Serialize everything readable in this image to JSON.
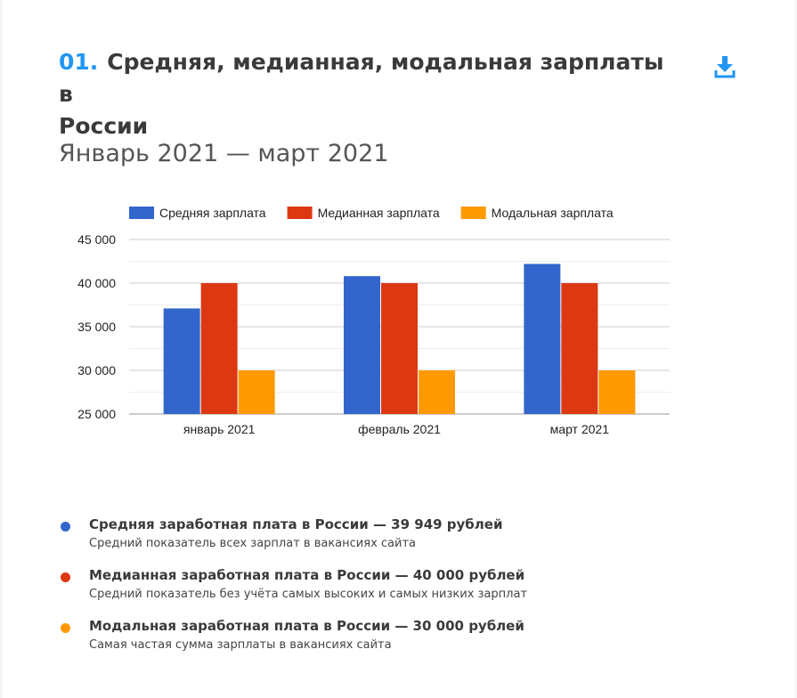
{
  "header": {
    "number": "01.",
    "title_line1": "Средняя, медианная, модальная зарплаты в",
    "title_line2": "России",
    "subtitle": "Январь 2021 — март 2021",
    "download_icon": "download-icon"
  },
  "colors": {
    "accent": "#2196f3",
    "series": [
      "#3366cc",
      "#dc3912",
      "#ff9900"
    ]
  },
  "chart_data": {
    "type": "bar",
    "categories": [
      "январь 2021",
      "февраль 2021",
      "март 2021"
    ],
    "series": [
      {
        "name": "Средняя зарплата",
        "values": [
          37100,
          40800,
          42200
        ]
      },
      {
        "name": "Медианная зарплата",
        "values": [
          40000,
          40000,
          40000
        ]
      },
      {
        "name": "Модальная зарплата",
        "values": [
          30000,
          30000,
          30000
        ]
      }
    ],
    "ylim": [
      25000,
      45000
    ],
    "yticks": [
      "45 000",
      "40 000",
      "35 000",
      "30 000",
      "25 000"
    ],
    "ytick_values": [
      45000,
      40000,
      35000,
      30000,
      25000
    ],
    "grid": true,
    "legend_position": "top"
  },
  "notes": [
    {
      "title": "Средняя заработная плата в России — 39 949 рублей",
      "desc": "Средний показатель всех зарплат в вакансиях сайта",
      "color": "#3366cc"
    },
    {
      "title": "Медианная заработная плата в России — 40 000 рублей",
      "desc": "Средний показатель без учёта самых высоких и самых низких зарплат",
      "color": "#dc3912"
    },
    {
      "title": "Модальная заработная плата в России — 30 000 рублей",
      "desc": "Самая частая сумма зарплаты в вакансиях сайта",
      "color": "#ff9900"
    }
  ]
}
